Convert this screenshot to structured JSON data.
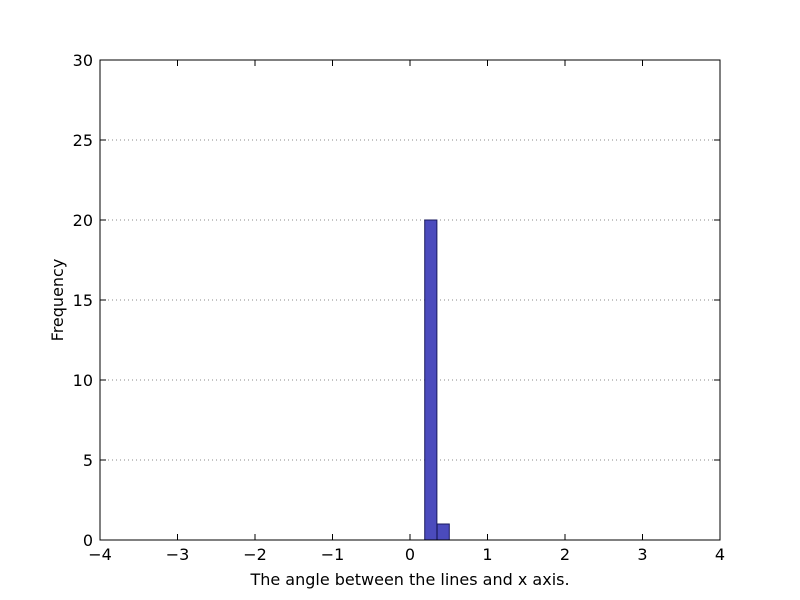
{
  "chart_data": {
    "type": "bar",
    "title": "",
    "xlabel": "The angle between the lines and x axis.",
    "ylabel": "Frequency",
    "xlim": [
      -4,
      4
    ],
    "ylim": [
      0,
      30
    ],
    "xticks": [
      -4,
      -3,
      -2,
      -1,
      0,
      1,
      2,
      3,
      4
    ],
    "yticks": [
      0,
      5,
      10,
      15,
      20,
      25,
      30
    ],
    "xtick_labels": [
      "−4",
      "−3",
      "−2",
      "−1",
      "0",
      "1",
      "2",
      "3",
      "4"
    ],
    "ytick_labels": [
      "0",
      "5",
      "10",
      "15",
      "20",
      "25",
      "30"
    ],
    "grid": {
      "y": true,
      "x": false,
      "style": "dotted"
    },
    "bin_width": 0.157,
    "bins": [
      {
        "x": -3.14,
        "value": 0
      },
      {
        "x": -2.98,
        "value": 0
      },
      {
        "x": -2.83,
        "value": 0
      },
      {
        "x": -2.67,
        "value": 0
      },
      {
        "x": -2.51,
        "value": 0
      },
      {
        "x": -2.36,
        "value": 0
      },
      {
        "x": -2.2,
        "value": 0
      },
      {
        "x": -2.04,
        "value": 0
      },
      {
        "x": -1.88,
        "value": 0
      },
      {
        "x": -1.73,
        "value": 0
      },
      {
        "x": -1.57,
        "value": 0
      },
      {
        "x": -1.41,
        "value": 0
      },
      {
        "x": -1.26,
        "value": 0
      },
      {
        "x": -1.1,
        "value": 0
      },
      {
        "x": -0.94,
        "value": 0
      },
      {
        "x": -0.79,
        "value": 0
      },
      {
        "x": -0.63,
        "value": 0
      },
      {
        "x": -0.47,
        "value": 0
      },
      {
        "x": -0.31,
        "value": 0
      },
      {
        "x": -0.16,
        "value": 0
      },
      {
        "x": 0.0,
        "value": 0
      },
      {
        "x": 0.19,
        "value": 20
      },
      {
        "x": 0.35,
        "value": 1
      },
      {
        "x": 0.47,
        "value": 0
      },
      {
        "x": 0.63,
        "value": 0
      },
      {
        "x": 0.79,
        "value": 0
      },
      {
        "x": 0.94,
        "value": 0
      },
      {
        "x": 1.1,
        "value": 0
      },
      {
        "x": 1.26,
        "value": 0
      },
      {
        "x": 1.41,
        "value": 0
      },
      {
        "x": 1.57,
        "value": 0
      },
      {
        "x": 1.73,
        "value": 0
      },
      {
        "x": 1.88,
        "value": 0
      },
      {
        "x": 2.04,
        "value": 0
      },
      {
        "x": 2.2,
        "value": 0
      },
      {
        "x": 2.36,
        "value": 0
      },
      {
        "x": 2.51,
        "value": 0
      },
      {
        "x": 2.67,
        "value": 0
      },
      {
        "x": 2.83,
        "value": 0
      },
      {
        "x": 2.98,
        "value": 0
      }
    ],
    "colors": {
      "bar_fill": "#4b4bbd",
      "bar_edge": "#1a1a5e",
      "grid": "#888888",
      "axes": "#000000"
    }
  }
}
